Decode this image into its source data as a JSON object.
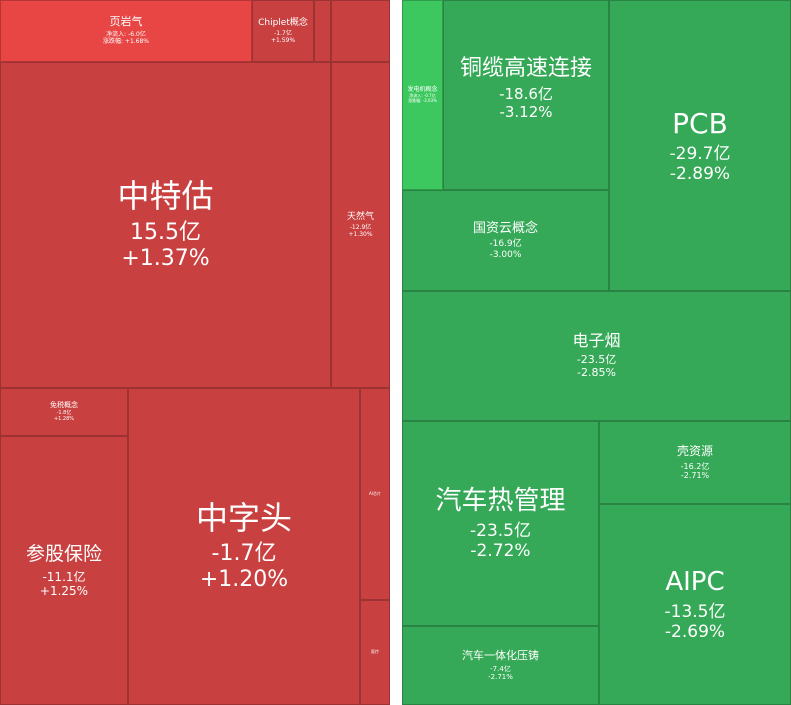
{
  "tiles": {
    "yeyanqi": {
      "name": "页岩气",
      "net_label": "净流入: -6.0亿",
      "change_label": "涨跌幅: +1.68%"
    },
    "chiplet": {
      "name": "Chiplet概念",
      "value": "-1.7亿",
      "change": "+1.59%"
    },
    "zhongteku": {
      "name": "中特估",
      "value": "15.5亿",
      "change": "+1.37%"
    },
    "tianranqi": {
      "name": "天然气",
      "value": "-12.9亿",
      "change": "+1.30%"
    },
    "mianshui": {
      "name": "免税概念",
      "value": "-1.8亿",
      "change": "+1.28%"
    },
    "cangu": {
      "name": "参股保险",
      "value": "-11.1亿",
      "change": "+1.25%"
    },
    "zhongzitou": {
      "name": "中字头",
      "value": "-1.7亿",
      "change": "+1.20%"
    },
    "aimi": {
      "name": "AI芯片"
    },
    "zhiliao": {
      "name": "医疗"
    },
    "fadianji": {
      "name": "发电机概念",
      "net_label": "净流入: -0.7亿",
      "change_label": "涨跌幅: -3.03%"
    },
    "tonglan": {
      "name": "铜缆高速连接",
      "value": "-18.6亿",
      "change": "-3.12%"
    },
    "pcb": {
      "name": "PCB",
      "value": "-29.7亿",
      "change": "-2.89%"
    },
    "guoziyun": {
      "name": "国资云概念",
      "value": "-16.9亿",
      "change": "-3.00%"
    },
    "dianziyan": {
      "name": "电子烟",
      "value": "-23.5亿",
      "change": "-2.85%"
    },
    "qicherecheng": {
      "name": "汽车热管理",
      "value": "-23.5亿",
      "change": "-2.72%"
    },
    "keziyuan": {
      "name": "壳资源",
      "value": "-16.2亿",
      "change": "-2.71%"
    },
    "aipc": {
      "name": "AIPC",
      "value": "-13.5亿",
      "change": "-2.69%"
    },
    "yitihua": {
      "name": "汽车一体化压铸",
      "value": "-7.4亿",
      "change": "-2.71%"
    }
  },
  "colors": {
    "up": "#c94040",
    "up_bright": "#e84545",
    "down": "#35a957",
    "down_bright": "#3cc85e"
  }
}
